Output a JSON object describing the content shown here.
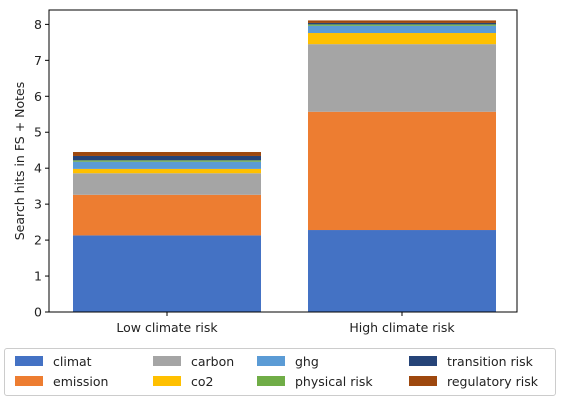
{
  "chart_data": {
    "type": "bar",
    "stacked": true,
    "categories": [
      "Low climate risk",
      "High climate risk"
    ],
    "ylabel": "Search hits in FS + Notes",
    "ylim": [
      0,
      8.4
    ],
    "yticks": [
      0,
      1,
      2,
      3,
      4,
      5,
      6,
      7,
      8
    ],
    "grid": false,
    "legend_position": "bottom",
    "series": [
      {
        "name": "climat",
        "color": "#4472C4",
        "values": [
          2.13,
          2.28
        ]
      },
      {
        "name": "emission",
        "color": "#ED7D31",
        "values": [
          1.13,
          3.29
        ]
      },
      {
        "name": "carbon",
        "color": "#A5A5A5",
        "values": [
          0.6,
          1.88
        ]
      },
      {
        "name": "co2",
        "color": "#FFC000",
        "values": [
          0.12,
          0.31
        ]
      },
      {
        "name": "ghg",
        "color": "#5B9BD5",
        "values": [
          0.2,
          0.2
        ]
      },
      {
        "name": "physical risk",
        "color": "#70AD47",
        "values": [
          0.04,
          0.04
        ]
      },
      {
        "name": "transition risk",
        "color": "#264478",
        "values": [
          0.12,
          0.04
        ]
      },
      {
        "name": "regulatory risk",
        "color": "#9E480E",
        "values": [
          0.11,
          0.07
        ]
      }
    ]
  }
}
